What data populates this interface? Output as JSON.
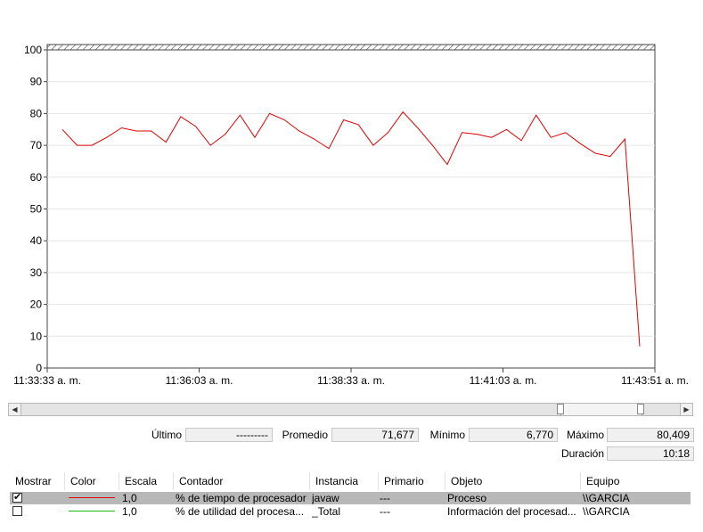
{
  "chart_data": {
    "type": "line",
    "y_ticks": [
      "100",
      "90",
      "80",
      "70",
      "60",
      "50",
      "40",
      "30",
      "20",
      "10",
      "0"
    ],
    "ylim": [
      0,
      100
    ],
    "x_tick_labels": [
      "11:33:33 a. m.",
      "11:36:03 a. m.",
      "11:38:33 a. m.",
      "11:41:03 a. m.",
      "11:43:51 a. m."
    ],
    "grid": "horizontal",
    "series": [
      {
        "name": "% de tiempo de procesador",
        "color": "#e00000",
        "values": [
          75,
          70,
          70,
          72.5,
          75.5,
          74.5,
          74.5,
          71,
          79,
          76,
          70,
          73.5,
          79.5,
          72.5,
          80,
          78,
          74.5,
          72,
          69,
          78,
          76.5,
          70,
          74,
          80.5,
          75.5,
          70,
          64,
          74,
          73.5,
          72.5,
          75,
          71.5,
          79.5,
          72.5,
          74,
          70.5,
          67.5,
          66.5,
          72,
          6.8
        ]
      }
    ]
  },
  "stats": {
    "ultimo_label": "Último",
    "ultimo_value": "---------",
    "promedio_label": "Promedio",
    "promedio_value": "71,677",
    "minimo_label": "Mínimo",
    "minimo_value": "6,770",
    "maximo_label": "Máximo",
    "maximo_value": "80,409",
    "duracion_label": "Duración",
    "duracion_value": "10:18"
  },
  "legend": {
    "headers": [
      "Mostrar",
      "Color",
      "Escala",
      "Contador",
      "Instancia",
      "Primario",
      "Objeto",
      "Equipo"
    ],
    "rows": [
      {
        "checked": true,
        "color": "#e00000",
        "escala": "1,0",
        "contador": "% de tiempo de procesador",
        "instancia": "javaw",
        "primario": "---",
        "objeto": "Proceso",
        "equipo": "\\\\GARCIA",
        "selected": true
      },
      {
        "checked": false,
        "color": "#22bb22",
        "escala": "1,0",
        "contador": "% de utilidad del procesa...",
        "instancia": "_Total",
        "primario": "---",
        "objeto": "Información del procesad...",
        "equipo": "\\\\GARCIA",
        "selected": false
      }
    ]
  }
}
